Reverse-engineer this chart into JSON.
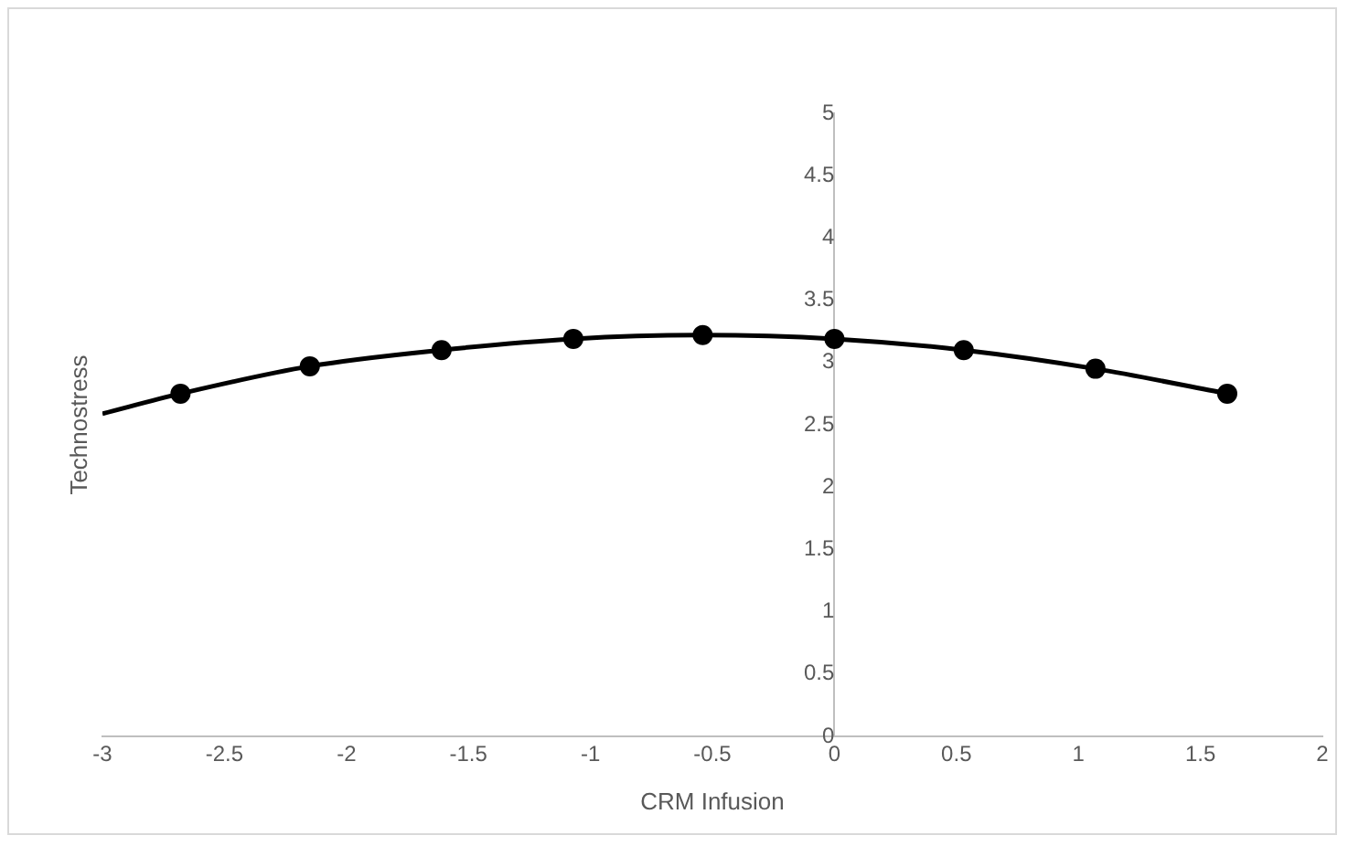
{
  "chart_data": {
    "type": "line",
    "xlabel": "CRM Infusion",
    "ylabel": "Technostress",
    "xlim": [
      -3,
      2
    ],
    "xticks": [
      -3,
      -2.5,
      -2,
      -1.5,
      -1,
      -0.5,
      0,
      0.5,
      1,
      1.5,
      2
    ],
    "ylim": [
      0,
      5
    ],
    "yticks": [
      0,
      0.5,
      1,
      1.5,
      2,
      2.5,
      3,
      3.5,
      4,
      4.5,
      5
    ],
    "grid": false,
    "legend": false,
    "series": [
      {
        "color": "#000000",
        "marker": "none",
        "x": [
          -3,
          -2.68,
          -2.15,
          -1.61,
          -1.07,
          -0.54,
          0,
          0.53,
          1.07,
          1.61
        ],
        "values": [
          2.59,
          2.75,
          2.97,
          3.1,
          3.19,
          3.22,
          3.19,
          3.1,
          2.95,
          2.75
        ]
      },
      {
        "type": "scatter",
        "color": "#000000",
        "marker": "circle",
        "x": [
          -2.68,
          -2.15,
          -1.61,
          -1.07,
          -0.54,
          0,
          0.53,
          1.07,
          1.61
        ],
        "values": [
          2.75,
          2.97,
          3.1,
          3.19,
          3.22,
          3.19,
          3.1,
          2.95,
          2.75
        ]
      }
    ]
  }
}
